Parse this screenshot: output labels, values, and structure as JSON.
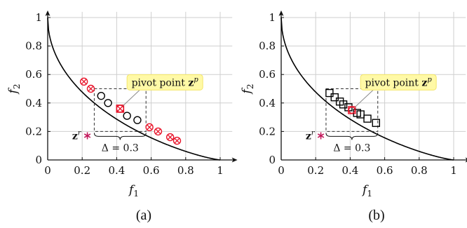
{
  "chart_data": [
    {
      "type": "scatter",
      "caption": "(a)",
      "xlabel": "f1",
      "ylabel": "f2",
      "xlim": [
        0,
        1.1
      ],
      "ylim": [
        0,
        1.05
      ],
      "xticks": [
        0,
        0.2,
        0.4,
        0.6,
        0.8,
        1
      ],
      "yticks": [
        0,
        0.2,
        0.4,
        0.6,
        0.8,
        1
      ],
      "xtick_labels": [
        "0",
        "0.2",
        "0.4",
        "0.6",
        "0.8",
        "1"
      ],
      "ytick_labels": [
        "0",
        "0.2",
        "0.4",
        "0.6",
        "0.8",
        "1"
      ],
      "front": "f2 = (1 - sqrt(f1))^1.25",
      "marker": "circle",
      "points": [
        {
          "x": 0.21,
          "y": 0.55,
          "selected": true
        },
        {
          "x": 0.25,
          "y": 0.5,
          "selected": true
        },
        {
          "x": 0.31,
          "y": 0.45,
          "selected": false
        },
        {
          "x": 0.35,
          "y": 0.4,
          "selected": false
        },
        {
          "x": 0.42,
          "y": 0.36,
          "selected": true
        },
        {
          "x": 0.46,
          "y": 0.31,
          "selected": false
        },
        {
          "x": 0.52,
          "y": 0.28,
          "selected": false
        },
        {
          "x": 0.59,
          "y": 0.23,
          "selected": true
        },
        {
          "x": 0.64,
          "y": 0.2,
          "selected": true
        },
        {
          "x": 0.71,
          "y": 0.16,
          "selected": true
        },
        {
          "x": 0.75,
          "y": 0.135,
          "selected": true
        }
      ],
      "pivot": {
        "x": 0.42,
        "y": 0.36
      },
      "reference": {
        "x": 0.23,
        "y": 0.17
      },
      "box": {
        "x0": 0.27,
        "x1": 0.57,
        "y0": 0.2,
        "y1": 0.5
      },
      "pivot_label": "pivot point z",
      "pivot_sup": "p",
      "ref_label": "z",
      "ref_sup": "r",
      "delta_label": "Δ = 0.3"
    },
    {
      "type": "scatter",
      "caption": "(b)",
      "xlabel": "f1",
      "ylabel": "f2",
      "xlim": [
        0,
        1.1
      ],
      "ylim": [
        0,
        1.05
      ],
      "xticks": [
        0,
        0.2,
        0.4,
        0.6,
        0.8,
        1
      ],
      "yticks": [
        0,
        0.2,
        0.4,
        0.6,
        0.8,
        1
      ],
      "xtick_labels": [
        "0",
        "0.2",
        "0.4",
        "0.6",
        "0.8",
        "1"
      ],
      "ytick_labels": [
        "0",
        "0.2",
        "0.4",
        "0.6",
        "0.8",
        "1"
      ],
      "front": "f2 = (1 - sqrt(f1))^1.25",
      "marker": "square",
      "points": [
        {
          "x": 0.28,
          "y": 0.47,
          "selected": false
        },
        {
          "x": 0.31,
          "y": 0.44,
          "selected": false
        },
        {
          "x": 0.34,
          "y": 0.41,
          "selected": false
        },
        {
          "x": 0.36,
          "y": 0.39,
          "selected": false
        },
        {
          "x": 0.39,
          "y": 0.37,
          "selected": false
        },
        {
          "x": 0.41,
          "y": 0.35,
          "selected": true
        },
        {
          "x": 0.44,
          "y": 0.33,
          "selected": false
        },
        {
          "x": 0.46,
          "y": 0.32,
          "selected": false
        },
        {
          "x": 0.5,
          "y": 0.29,
          "selected": false
        },
        {
          "x": 0.55,
          "y": 0.26,
          "selected": false
        }
      ],
      "pivot": {
        "x": 0.41,
        "y": 0.35
      },
      "reference": {
        "x": 0.23,
        "y": 0.17
      },
      "box": {
        "x0": 0.26,
        "x1": 0.56,
        "y0": 0.2,
        "y1": 0.5
      },
      "pivot_label": "pivot point z",
      "pivot_sup": "p",
      "ref_label": "z",
      "ref_sup": "r",
      "delta_label": "Δ = 0.3"
    }
  ],
  "colors": {
    "axis": "#111111",
    "front": "#000000",
    "marker": "#000000",
    "selected": "#e8142a",
    "reference": "#c2185b",
    "callout_bg": "#fff9a6",
    "callout_border": "#f4e66a",
    "box": "#333333"
  }
}
